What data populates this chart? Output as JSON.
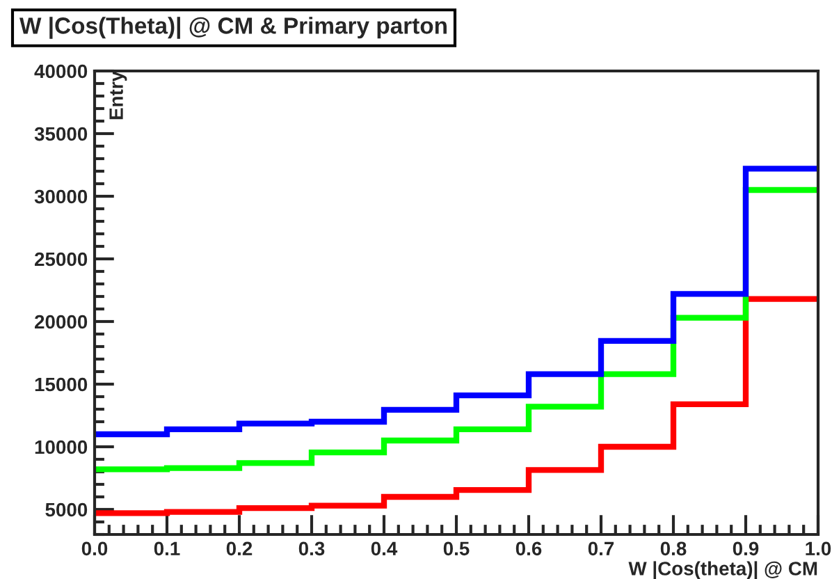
{
  "chart_data": {
    "type": "histogram",
    "title": "W |Cos(Theta)| @ CM & Primary parton",
    "xlabel": "W |Cos(theta)| @ CM",
    "ylabel": "Entry",
    "bins": [
      0.0,
      0.1,
      0.2,
      0.3,
      0.4,
      0.5,
      0.6,
      0.7,
      0.8,
      0.9,
      1.0
    ],
    "series": [
      {
        "color": "#ff0000",
        "values": [
          4700,
          4800,
          5100,
          5300,
          6000,
          6550,
          8150,
          10000,
          13400,
          21800
        ]
      },
      {
        "color": "#00ff00",
        "values": [
          8200,
          8300,
          8700,
          9550,
          10500,
          11400,
          13200,
          15800,
          20300,
          30500
        ]
      },
      {
        "color": "#0000ff",
        "values": [
          11000,
          11400,
          11850,
          12000,
          12950,
          14100,
          15800,
          18450,
          22200,
          32200
        ]
      }
    ],
    "xlim": [
      0.0,
      1.0
    ],
    "ylim": [
      3000,
      40000
    ],
    "xticks": [
      {
        "value": 0.0,
        "label": "0.0"
      },
      0.1,
      0.2,
      0.3,
      0.4,
      0.5,
      0.6,
      0.7,
      0.8,
      0.9,
      {
        "value": 1.0,
        "label": "1.0"
      }
    ],
    "yticks": [
      5000,
      10000,
      15000,
      20000,
      25000,
      30000,
      35000,
      40000
    ],
    "grid": false,
    "legend": false
  }
}
